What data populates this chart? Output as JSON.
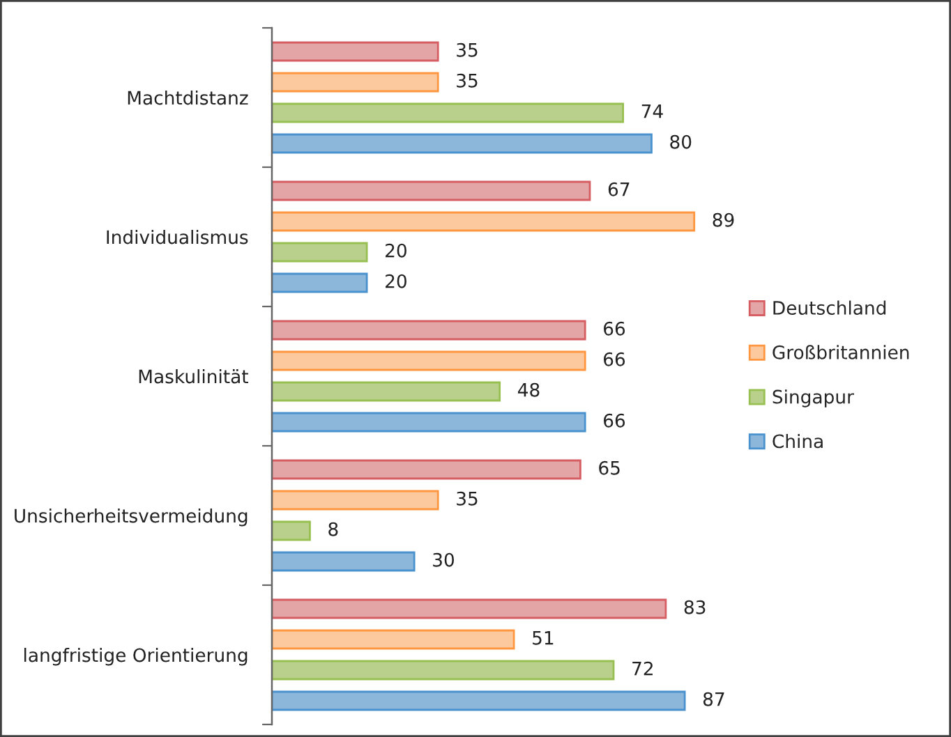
{
  "chart_data": {
    "type": "bar",
    "orientation": "horizontal",
    "categories": [
      "Machtdistanz",
      "Individualismus",
      "Maskulinität",
      "Unsicherheitsvermeidung",
      "langfristige Orientierung"
    ],
    "series": [
      {
        "name": "Deutschland",
        "color": "#e4a5a7",
        "values": [
          35,
          67,
          66,
          65,
          83
        ]
      },
      {
        "name": "Großbritannien",
        "color": "#fcc89d",
        "values": [
          35,
          89,
          66,
          35,
          51
        ]
      },
      {
        "name": "Singapur",
        "color": "#b8d08c",
        "values": [
          74,
          20,
          48,
          8,
          72
        ]
      },
      {
        "name": "China",
        "color": "#8cb7da",
        "values": [
          80,
          20,
          66,
          30,
          87
        ]
      }
    ],
    "data_labels": true,
    "legend": "right",
    "grid": false,
    "tick_labels": "y"
  }
}
